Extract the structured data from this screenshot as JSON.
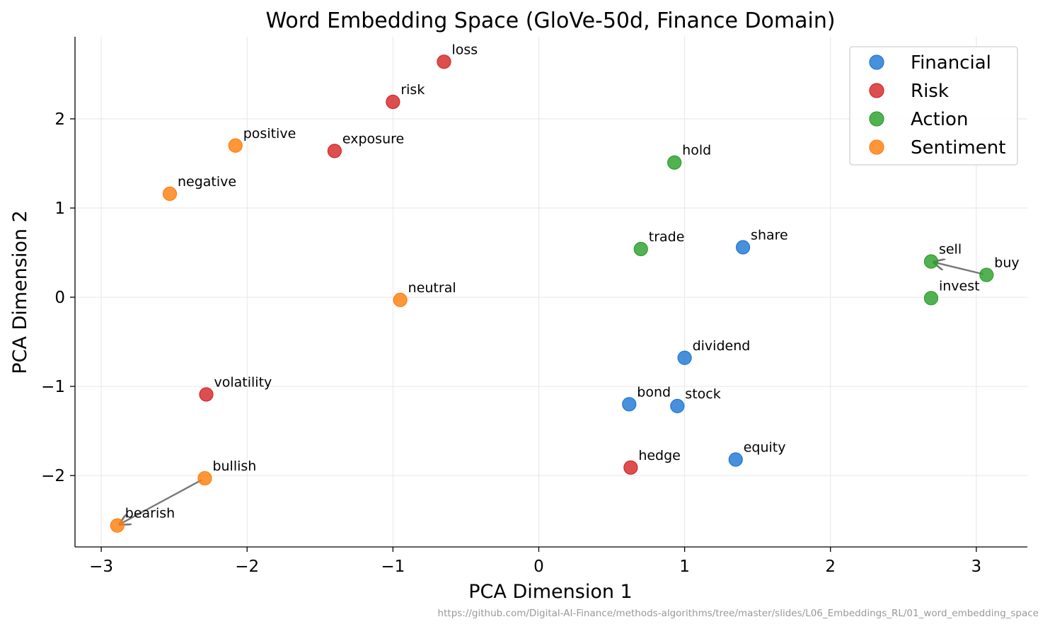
{
  "chart_data": {
    "type": "scatter",
    "title": "Word Embedding Space (GloVe-50d, Finance Domain)",
    "xlabel": "PCA Dimension 1",
    "ylabel": "PCA Dimension 2",
    "xlim": [
      -3.18,
      3.35
    ],
    "ylim": [
      -2.8,
      2.92
    ],
    "xticks": [
      -3,
      -2,
      -1,
      0,
      1,
      2,
      3
    ],
    "yticks": [
      -2,
      -1,
      0,
      1,
      2
    ],
    "tick_labels_x": [
      "−3",
      "−2",
      "−1",
      "0",
      "1",
      "2",
      "3"
    ],
    "tick_labels_y": [
      "−2",
      "−1",
      "0",
      "1",
      "2"
    ],
    "grid": true,
    "legend_position": "top-right",
    "series": [
      {
        "name": "Financial",
        "color": "#1f77d4",
        "points": [
          {
            "label": "share",
            "x": 1.4,
            "y": 0.56
          },
          {
            "label": "dividend",
            "x": 1.0,
            "y": -0.68
          },
          {
            "label": "bond",
            "x": 0.62,
            "y": -1.2
          },
          {
            "label": "stock",
            "x": 0.95,
            "y": -1.22
          },
          {
            "label": "equity",
            "x": 1.35,
            "y": -1.82
          }
        ]
      },
      {
        "name": "Risk",
        "color": "#d62728",
        "points": [
          {
            "label": "loss",
            "x": -0.65,
            "y": 2.64
          },
          {
            "label": "risk",
            "x": -1.0,
            "y": 2.19
          },
          {
            "label": "exposure",
            "x": -1.4,
            "y": 1.64
          },
          {
            "label": "volatility",
            "x": -2.28,
            "y": -1.09
          },
          {
            "label": "hedge",
            "x": 0.63,
            "y": -1.91
          }
        ]
      },
      {
        "name": "Action",
        "color": "#2ca02c",
        "points": [
          {
            "label": "hold",
            "x": 0.93,
            "y": 1.51
          },
          {
            "label": "trade",
            "x": 0.7,
            "y": 0.54
          },
          {
            "label": "sell",
            "x": 2.69,
            "y": 0.4
          },
          {
            "label": "buy",
            "x": 3.07,
            "y": 0.25
          },
          {
            "label": "invest",
            "x": 2.69,
            "y": -0.01
          }
        ]
      },
      {
        "name": "Sentiment",
        "color": "#ff7f0e",
        "points": [
          {
            "label": "positive",
            "x": -2.08,
            "y": 1.7
          },
          {
            "label": "negative",
            "x": -2.53,
            "y": 1.16
          },
          {
            "label": "neutral",
            "x": -0.95,
            "y": -0.03
          },
          {
            "label": "bullish",
            "x": -2.29,
            "y": -2.03
          },
          {
            "label": "bearish",
            "x": -2.89,
            "y": -2.56
          }
        ]
      }
    ],
    "arrows": [
      {
        "from": "buy",
        "to": "sell"
      },
      {
        "from": "bullish",
        "to": "bearish"
      }
    ]
  },
  "source_url": "https://github.com/Digital-AI-Finance/methods-algorithms/tree/master/slides/L06_Embeddings_RL/01_word_embedding_space"
}
